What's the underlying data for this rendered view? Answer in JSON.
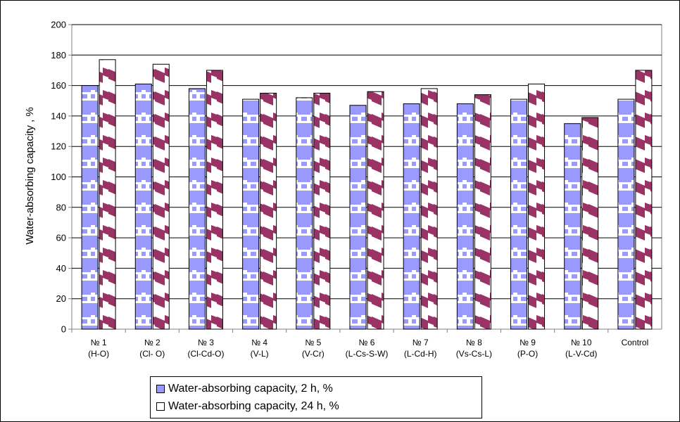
{
  "chart_data": {
    "type": "bar",
    "categories": [
      [
        "№ 1",
        "(H-O)"
      ],
      [
        "№ 2",
        "(Cl- O)"
      ],
      [
        "№ 3",
        "(Cl-Cd-O)"
      ],
      [
        "№ 4",
        "(V-L)"
      ],
      [
        "№ 5",
        "(V-Cr)"
      ],
      [
        "№ 6",
        "(L-Cs-S-W)"
      ],
      [
        "№ 7",
        "(L-Cd-H)"
      ],
      [
        "№ 8",
        "(Vs-Cs-L)"
      ],
      [
        "№ 9",
        "(P-O)"
      ],
      [
        "№ 10",
        "(L-V-Cd)"
      ],
      [
        "Control"
      ]
    ],
    "series": [
      {
        "name": "Water-absorbing capacity, 2 h, %",
        "values": [
          160,
          161,
          158,
          151,
          152,
          147,
          148,
          148,
          151,
          135,
          151
        ],
        "color": "#9999ff"
      },
      {
        "name": "Water-absorbing capacity, 24 h, %",
        "values": [
          177,
          174,
          170,
          155,
          155,
          156,
          158,
          154,
          161,
          139,
          170
        ],
        "color": "#993366"
      }
    ],
    "title": "",
    "xlabel": "",
    "ylabel": "Water-absorbing capacity , %",
    "ylim": [
      0,
      200
    ],
    "yticks": [
      0,
      20,
      40,
      60,
      80,
      100,
      120,
      140,
      160,
      180,
      200
    ],
    "grid": true,
    "legend_position": "bottom"
  }
}
